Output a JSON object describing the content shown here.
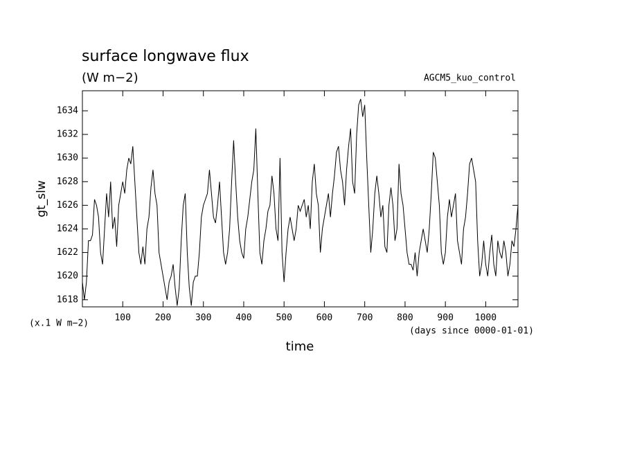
{
  "chart_data": {
    "type": "line",
    "title": "surface longwave flux",
    "subtitle": "(W m−2)",
    "annotation": "AGCM5_kuo_control",
    "y_label": "gt_slw",
    "y_unit_note": "(x.1 W m−2)",
    "x_unit_note": "(days since 0000-01-01)",
    "x_label": "time",
    "color": "#000000",
    "xlim": [
      0,
      1080
    ],
    "ylim": [
      1617.4,
      1635.7
    ],
    "xticks": [
      100,
      200,
      300,
      400,
      500,
      600,
      700,
      800,
      900,
      1000
    ],
    "yticks": [
      1618,
      1620,
      1622,
      1624,
      1626,
      1628,
      1630,
      1632,
      1634
    ],
    "x": [
      0,
      5,
      10,
      15,
      20,
      25,
      30,
      35,
      40,
      45,
      50,
      55,
      60,
      65,
      70,
      75,
      80,
      85,
      90,
      95,
      100,
      105,
      110,
      115,
      120,
      125,
      130,
      135,
      140,
      145,
      150,
      155,
      160,
      165,
      170,
      175,
      180,
      185,
      190,
      195,
      200,
      205,
      210,
      215,
      220,
      225,
      230,
      235,
      240,
      245,
      250,
      255,
      260,
      265,
      270,
      275,
      280,
      285,
      290,
      295,
      300,
      305,
      310,
      315,
      320,
      325,
      330,
      335,
      340,
      345,
      350,
      355,
      360,
      365,
      370,
      375,
      380,
      385,
      390,
      395,
      400,
      405,
      410,
      415,
      420,
      425,
      430,
      435,
      440,
      445,
      450,
      455,
      460,
      465,
      470,
      475,
      480,
      485,
      490,
      495,
      500,
      505,
      510,
      515,
      520,
      525,
      530,
      535,
      540,
      545,
      550,
      555,
      560,
      565,
      570,
      575,
      580,
      585,
      590,
      595,
      600,
      605,
      610,
      615,
      620,
      625,
      630,
      635,
      640,
      645,
      650,
      655,
      660,
      665,
      670,
      675,
      680,
      685,
      690,
      695,
      700,
      705,
      710,
      715,
      720,
      725,
      730,
      735,
      740,
      745,
      750,
      755,
      760,
      765,
      770,
      775,
      780,
      785,
      790,
      795,
      800,
      805,
      810,
      815,
      820,
      825,
      830,
      835,
      840,
      845,
      850,
      855,
      860,
      865,
      870,
      875,
      880,
      885,
      890,
      895,
      900,
      905,
      910,
      915,
      920,
      925,
      930,
      935,
      940,
      945,
      950,
      955,
      960,
      965,
      970,
      975,
      980,
      985,
      990,
      995,
      1000,
      1005,
      1010,
      1015,
      1020,
      1025,
      1030,
      1035,
      1040,
      1045,
      1050,
      1055,
      1060,
      1065,
      1070,
      1075,
      1080
    ],
    "values": [
      1619.5,
      1618,
      1619.5,
      1623,
      1623,
      1623.5,
      1626.5,
      1626,
      1625,
      1622,
      1621,
      1624,
      1627,
      1625,
      1628,
      1624,
      1625,
      1622.5,
      1626,
      1627,
      1628,
      1627,
      1629,
      1630,
      1629.5,
      1631,
      1628,
      1625,
      1622,
      1621,
      1622.5,
      1621,
      1624,
      1625,
      1627.5,
      1629,
      1627,
      1626,
      1622,
      1621,
      1620,
      1619,
      1618,
      1619.5,
      1620,
      1621,
      1619,
      1617.5,
      1619,
      1623,
      1626,
      1627,
      1622,
      1619,
      1617.5,
      1619.5,
      1620,
      1620,
      1622,
      1625,
      1626,
      1626.5,
      1627,
      1629,
      1627,
      1625,
      1624.5,
      1626,
      1628,
      1625,
      1622,
      1621,
      1622,
      1624,
      1628,
      1631.5,
      1628,
      1625,
      1623,
      1622,
      1621.5,
      1624,
      1625,
      1626.5,
      1628,
      1629,
      1632.5,
      1627,
      1622,
      1621,
      1623,
      1624,
      1625.5,
      1626,
      1628.5,
      1627,
      1624,
      1623,
      1630,
      1622,
      1619.5,
      1622,
      1624,
      1625,
      1624,
      1623,
      1624,
      1626,
      1625.5,
      1626,
      1626.5,
      1625,
      1626,
      1624,
      1628,
      1629.5,
      1627,
      1626,
      1622,
      1624,
      1625,
      1626,
      1627,
      1625,
      1627,
      1628.5,
      1630.5,
      1631,
      1629,
      1628,
      1626,
      1629,
      1631,
      1632.5,
      1628,
      1627,
      1632,
      1634.5,
      1635,
      1633.5,
      1634.5,
      1630,
      1626,
      1622,
      1624,
      1627,
      1628.5,
      1627,
      1625,
      1626,
      1622.5,
      1622,
      1626,
      1627.5,
      1626,
      1623,
      1624,
      1629.5,
      1627,
      1626,
      1624,
      1622,
      1621,
      1621,
      1620.5,
      1622,
      1620,
      1622,
      1623,
      1624,
      1623,
      1622,
      1624,
      1627,
      1630.5,
      1630,
      1628,
      1626,
      1622,
      1621,
      1622,
      1625,
      1626.5,
      1625,
      1626,
      1627,
      1623,
      1622,
      1621,
      1624,
      1625,
      1627,
      1629.5,
      1630,
      1629,
      1628,
      1623,
      1620,
      1621,
      1623,
      1621,
      1620,
      1622,
      1623.5,
      1621,
      1620,
      1623,
      1622,
      1621.5,
      1623,
      1622,
      1620,
      1621,
      1623,
      1622.5,
      1624,
      1626
    ]
  }
}
